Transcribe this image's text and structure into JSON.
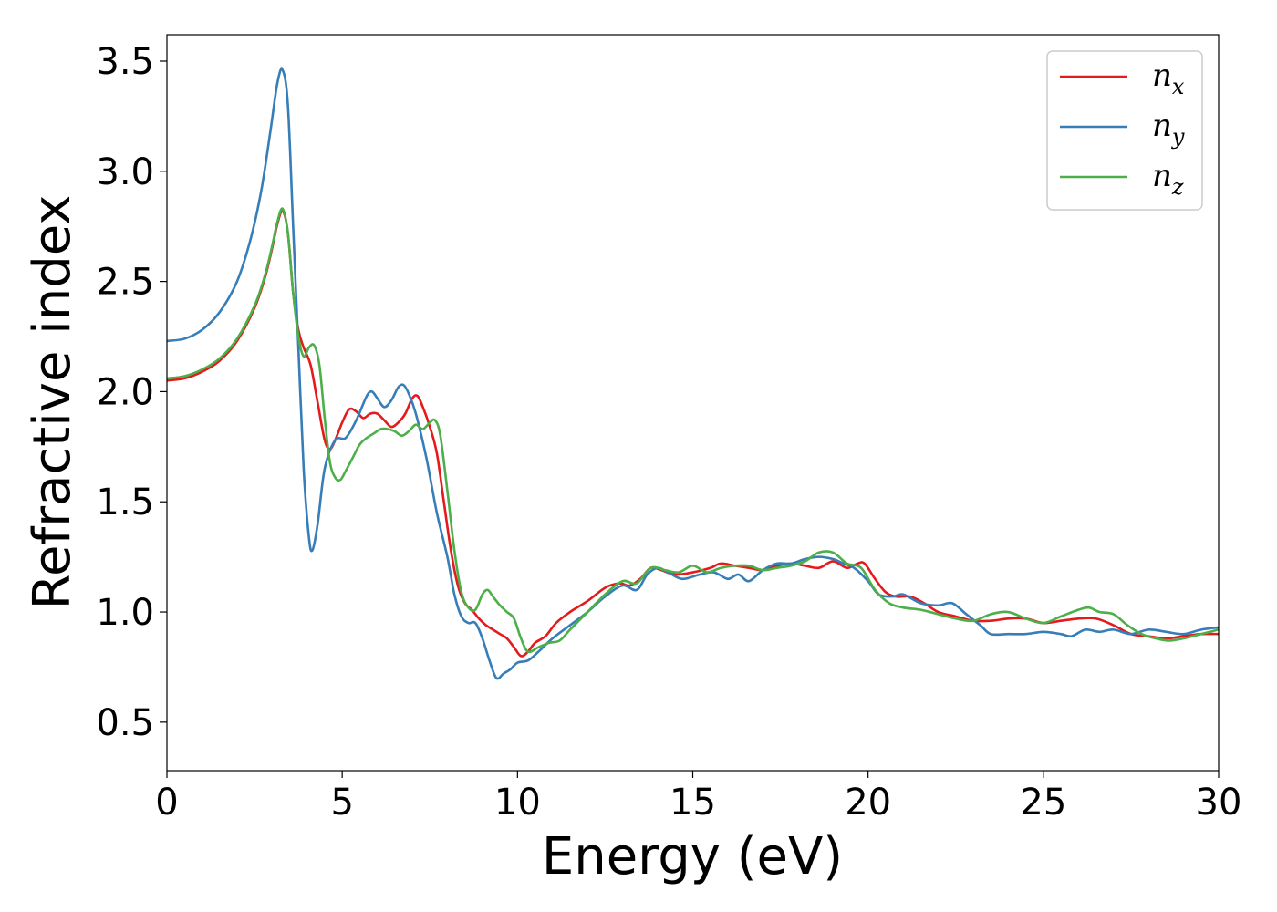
{
  "chart_data": {
    "type": "line",
    "xlabel": "Energy (eV)",
    "ylabel": "Refractive index",
    "xlim": [
      0,
      30
    ],
    "ylim": [
      0.28,
      3.62
    ],
    "xticks": [
      0,
      5,
      10,
      15,
      20,
      25,
      30
    ],
    "yticks": [
      0.5,
      1.0,
      1.5,
      2.0,
      2.5,
      3.0,
      3.5
    ],
    "xtick_labels": [
      "0",
      "5",
      "10",
      "15",
      "20",
      "25",
      "30"
    ],
    "ytick_labels": [
      "0.5",
      "1.0",
      "1.5",
      "2.0",
      "2.5",
      "3.0",
      "3.5"
    ],
    "grid": false,
    "legend_position": "top-right",
    "series": [
      {
        "name": "n",
        "subscript": "x",
        "color": "#e41a1c",
        "points": [
          [
            0,
            2.05
          ],
          [
            0.5,
            2.06
          ],
          [
            1.0,
            2.09
          ],
          [
            1.5,
            2.14
          ],
          [
            2.0,
            2.23
          ],
          [
            2.5,
            2.38
          ],
          [
            2.8,
            2.52
          ],
          [
            3.0,
            2.65
          ],
          [
            3.15,
            2.76
          ],
          [
            3.3,
            2.82
          ],
          [
            3.45,
            2.72
          ],
          [
            3.6,
            2.45
          ],
          [
            3.75,
            2.28
          ],
          [
            3.9,
            2.2
          ],
          [
            4.1,
            2.12
          ],
          [
            4.3,
            1.95
          ],
          [
            4.5,
            1.78
          ],
          [
            4.65,
            1.74
          ],
          [
            4.8,
            1.78
          ],
          [
            5.0,
            1.86
          ],
          [
            5.2,
            1.92
          ],
          [
            5.4,
            1.91
          ],
          [
            5.6,
            1.88
          ],
          [
            5.8,
            1.9
          ],
          [
            6.0,
            1.9
          ],
          [
            6.2,
            1.87
          ],
          [
            6.4,
            1.84
          ],
          [
            6.6,
            1.86
          ],
          [
            6.8,
            1.9
          ],
          [
            7.0,
            1.97
          ],
          [
            7.15,
            1.98
          ],
          [
            7.3,
            1.93
          ],
          [
            7.5,
            1.84
          ],
          [
            7.7,
            1.72
          ],
          [
            7.9,
            1.5
          ],
          [
            8.1,
            1.28
          ],
          [
            8.3,
            1.12
          ],
          [
            8.5,
            1.04
          ],
          [
            8.7,
            1.01
          ],
          [
            8.9,
            0.97
          ],
          [
            9.1,
            0.94
          ],
          [
            9.3,
            0.92
          ],
          [
            9.5,
            0.9
          ],
          [
            9.7,
            0.88
          ],
          [
            9.9,
            0.84
          ],
          [
            10.1,
            0.8
          ],
          [
            10.3,
            0.82
          ],
          [
            10.5,
            0.86
          ],
          [
            10.8,
            0.89
          ],
          [
            11.1,
            0.95
          ],
          [
            11.5,
            1.0
          ],
          [
            12.0,
            1.05
          ],
          [
            12.5,
            1.11
          ],
          [
            12.9,
            1.13
          ],
          [
            13.2,
            1.12
          ],
          [
            13.5,
            1.15
          ],
          [
            13.8,
            1.2
          ],
          [
            14.1,
            1.19
          ],
          [
            14.5,
            1.17
          ],
          [
            15.0,
            1.18
          ],
          [
            15.5,
            1.2
          ],
          [
            15.8,
            1.22
          ],
          [
            16.2,
            1.21
          ],
          [
            16.6,
            1.2
          ],
          [
            17.0,
            1.19
          ],
          [
            17.4,
            1.21
          ],
          [
            17.8,
            1.22
          ],
          [
            18.2,
            1.21
          ],
          [
            18.6,
            1.2
          ],
          [
            19.0,
            1.23
          ],
          [
            19.4,
            1.2
          ],
          [
            19.7,
            1.22
          ],
          [
            19.9,
            1.22
          ],
          [
            20.2,
            1.15
          ],
          [
            20.5,
            1.09
          ],
          [
            20.8,
            1.07
          ],
          [
            21.2,
            1.07
          ],
          [
            21.6,
            1.04
          ],
          [
            22.0,
            1.0
          ],
          [
            22.5,
            0.98
          ],
          [
            23.0,
            0.96
          ],
          [
            23.5,
            0.96
          ],
          [
            24.0,
            0.97
          ],
          [
            24.5,
            0.97
          ],
          [
            25.0,
            0.95
          ],
          [
            25.5,
            0.96
          ],
          [
            26.0,
            0.97
          ],
          [
            26.5,
            0.97
          ],
          [
            27.0,
            0.94
          ],
          [
            27.5,
            0.9
          ],
          [
            28.0,
            0.89
          ],
          [
            28.5,
            0.88
          ],
          [
            29.0,
            0.89
          ],
          [
            29.5,
            0.9
          ],
          [
            30.0,
            0.9
          ]
        ]
      },
      {
        "name": "n",
        "subscript": "y",
        "color": "#377eb8",
        "points": [
          [
            0,
            2.23
          ],
          [
            0.5,
            2.24
          ],
          [
            1.0,
            2.28
          ],
          [
            1.5,
            2.36
          ],
          [
            2.0,
            2.5
          ],
          [
            2.4,
            2.7
          ],
          [
            2.7,
            2.92
          ],
          [
            2.95,
            3.18
          ],
          [
            3.15,
            3.4
          ],
          [
            3.3,
            3.46
          ],
          [
            3.45,
            3.3
          ],
          [
            3.6,
            2.75
          ],
          [
            3.75,
            2.2
          ],
          [
            3.9,
            1.65
          ],
          [
            4.05,
            1.34
          ],
          [
            4.15,
            1.28
          ],
          [
            4.3,
            1.4
          ],
          [
            4.5,
            1.65
          ],
          [
            4.8,
            1.78
          ],
          [
            5.1,
            1.79
          ],
          [
            5.4,
            1.87
          ],
          [
            5.7,
            1.98
          ],
          [
            5.85,
            2.0
          ],
          [
            6.0,
            1.97
          ],
          [
            6.2,
            1.93
          ],
          [
            6.4,
            1.96
          ],
          [
            6.6,
            2.02
          ],
          [
            6.75,
            2.03
          ],
          [
            6.9,
            1.99
          ],
          [
            7.1,
            1.9
          ],
          [
            7.4,
            1.7
          ],
          [
            7.7,
            1.45
          ],
          [
            8.0,
            1.25
          ],
          [
            8.2,
            1.08
          ],
          [
            8.4,
            0.98
          ],
          [
            8.6,
            0.95
          ],
          [
            8.8,
            0.95
          ],
          [
            9.0,
            0.88
          ],
          [
            9.2,
            0.78
          ],
          [
            9.4,
            0.7
          ],
          [
            9.6,
            0.72
          ],
          [
            9.8,
            0.74
          ],
          [
            10.0,
            0.77
          ],
          [
            10.3,
            0.78
          ],
          [
            10.6,
            0.82
          ],
          [
            11.0,
            0.88
          ],
          [
            11.5,
            0.94
          ],
          [
            12.0,
            1.0
          ],
          [
            12.5,
            1.07
          ],
          [
            13.0,
            1.12
          ],
          [
            13.4,
            1.1
          ],
          [
            13.7,
            1.17
          ],
          [
            14.0,
            1.2
          ],
          [
            14.3,
            1.18
          ],
          [
            14.7,
            1.15
          ],
          [
            15.2,
            1.17
          ],
          [
            15.6,
            1.18
          ],
          [
            16.0,
            1.15
          ],
          [
            16.3,
            1.17
          ],
          [
            16.6,
            1.14
          ],
          [
            17.0,
            1.19
          ],
          [
            17.4,
            1.22
          ],
          [
            17.8,
            1.22
          ],
          [
            18.2,
            1.24
          ],
          [
            18.6,
            1.25
          ],
          [
            19.0,
            1.24
          ],
          [
            19.3,
            1.22
          ],
          [
            19.6,
            1.2
          ],
          [
            20.0,
            1.14
          ],
          [
            20.3,
            1.08
          ],
          [
            20.7,
            1.07
          ],
          [
            21.0,
            1.08
          ],
          [
            21.5,
            1.04
          ],
          [
            22.0,
            1.03
          ],
          [
            22.4,
            1.04
          ],
          [
            22.8,
            0.99
          ],
          [
            23.2,
            0.94
          ],
          [
            23.5,
            0.9
          ],
          [
            24.0,
            0.9
          ],
          [
            24.5,
            0.9
          ],
          [
            25.0,
            0.91
          ],
          [
            25.5,
            0.9
          ],
          [
            25.8,
            0.89
          ],
          [
            26.2,
            0.92
          ],
          [
            26.6,
            0.91
          ],
          [
            27.0,
            0.92
          ],
          [
            27.5,
            0.9
          ],
          [
            28.0,
            0.92
          ],
          [
            28.5,
            0.91
          ],
          [
            29.0,
            0.9
          ],
          [
            29.5,
            0.92
          ],
          [
            30.0,
            0.93
          ]
        ]
      },
      {
        "name": "n",
        "subscript": "z",
        "color": "#4daf4a",
        "points": [
          [
            0,
            2.06
          ],
          [
            0.5,
            2.07
          ],
          [
            1.0,
            2.1
          ],
          [
            1.5,
            2.15
          ],
          [
            2.0,
            2.24
          ],
          [
            2.5,
            2.39
          ],
          [
            2.8,
            2.53
          ],
          [
            3.0,
            2.66
          ],
          [
            3.15,
            2.77
          ],
          [
            3.3,
            2.83
          ],
          [
            3.45,
            2.72
          ],
          [
            3.6,
            2.45
          ],
          [
            3.75,
            2.25
          ],
          [
            3.9,
            2.16
          ],
          [
            4.05,
            2.2
          ],
          [
            4.2,
            2.21
          ],
          [
            4.35,
            2.12
          ],
          [
            4.5,
            1.88
          ],
          [
            4.65,
            1.68
          ],
          [
            4.8,
            1.61
          ],
          [
            4.95,
            1.6
          ],
          [
            5.1,
            1.64
          ],
          [
            5.3,
            1.7
          ],
          [
            5.5,
            1.76
          ],
          [
            5.7,
            1.79
          ],
          [
            5.9,
            1.81
          ],
          [
            6.1,
            1.83
          ],
          [
            6.3,
            1.83
          ],
          [
            6.5,
            1.82
          ],
          [
            6.7,
            1.8
          ],
          [
            6.9,
            1.82
          ],
          [
            7.1,
            1.85
          ],
          [
            7.3,
            1.83
          ],
          [
            7.5,
            1.86
          ],
          [
            7.65,
            1.87
          ],
          [
            7.8,
            1.8
          ],
          [
            8.0,
            1.55
          ],
          [
            8.2,
            1.28
          ],
          [
            8.4,
            1.09
          ],
          [
            8.6,
            1.02
          ],
          [
            8.8,
            1.01
          ],
          [
            9.0,
            1.08
          ],
          [
            9.15,
            1.1
          ],
          [
            9.3,
            1.07
          ],
          [
            9.5,
            1.03
          ],
          [
            9.7,
            1.0
          ],
          [
            9.9,
            0.97
          ],
          [
            10.1,
            0.88
          ],
          [
            10.3,
            0.82
          ],
          [
            10.6,
            0.84
          ],
          [
            10.9,
            0.86
          ],
          [
            11.2,
            0.87
          ],
          [
            11.5,
            0.92
          ],
          [
            12.0,
            1.0
          ],
          [
            12.5,
            1.08
          ],
          [
            13.0,
            1.14
          ],
          [
            13.4,
            1.13
          ],
          [
            13.8,
            1.2
          ],
          [
            14.2,
            1.19
          ],
          [
            14.6,
            1.18
          ],
          [
            15.0,
            1.21
          ],
          [
            15.4,
            1.18
          ],
          [
            15.8,
            1.2
          ],
          [
            16.2,
            1.21
          ],
          [
            16.6,
            1.21
          ],
          [
            17.0,
            1.19
          ],
          [
            17.4,
            1.2
          ],
          [
            17.8,
            1.21
          ],
          [
            18.2,
            1.23
          ],
          [
            18.6,
            1.27
          ],
          [
            19.0,
            1.27
          ],
          [
            19.4,
            1.22
          ],
          [
            19.8,
            1.2
          ],
          [
            20.2,
            1.1
          ],
          [
            20.6,
            1.04
          ],
          [
            21.0,
            1.02
          ],
          [
            21.5,
            1.01
          ],
          [
            22.0,
            0.99
          ],
          [
            22.5,
            0.97
          ],
          [
            23.0,
            0.96
          ],
          [
            23.5,
            0.99
          ],
          [
            24.0,
            1.0
          ],
          [
            24.5,
            0.97
          ],
          [
            25.0,
            0.95
          ],
          [
            25.5,
            0.98
          ],
          [
            26.0,
            1.01
          ],
          [
            26.3,
            1.02
          ],
          [
            26.6,
            1.0
          ],
          [
            27.0,
            0.99
          ],
          [
            27.4,
            0.94
          ],
          [
            27.8,
            0.9
          ],
          [
            28.2,
            0.88
          ],
          [
            28.6,
            0.87
          ],
          [
            29.0,
            0.88
          ],
          [
            29.5,
            0.9
          ],
          [
            30.0,
            0.92
          ]
        ]
      }
    ]
  }
}
